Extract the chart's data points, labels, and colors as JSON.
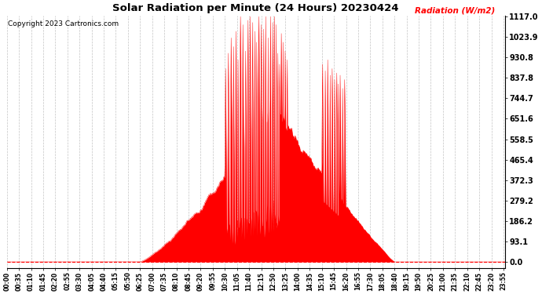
{
  "title": "Solar Radiation per Minute (24 Hours) 20230424",
  "copyright_text": "Copyright 2023 Cartronics.com",
  "ylabel": "Radiation (W/m2)",
  "ylabel_color": "#ff0000",
  "fill_color": "#ff0000",
  "line_color": "#ff0000",
  "background_color": "#ffffff",
  "grid_color": "#aaaaaa",
  "ymax": 1117.0,
  "yticks": [
    0.0,
    93.1,
    186.2,
    279.2,
    372.3,
    465.4,
    558.5,
    651.6,
    744.7,
    837.8,
    930.8,
    1023.9,
    1117.0
  ],
  "hline_color": "#ff0000",
  "num_minutes": 1440,
  "xtick_interval": 35,
  "xtick_labels": [
    "00:00",
    "00:35",
    "01:10",
    "01:45",
    "02:20",
    "02:55",
    "03:30",
    "04:05",
    "04:40",
    "05:15",
    "05:50",
    "06:25",
    "07:00",
    "07:35",
    "08:10",
    "08:45",
    "09:20",
    "09:55",
    "10:30",
    "11:05",
    "11:40",
    "12:15",
    "12:50",
    "13:25",
    "14:00",
    "14:35",
    "15:10",
    "15:45",
    "16:20",
    "16:55",
    "17:30",
    "18:05",
    "18:40",
    "19:15",
    "19:50",
    "20:25",
    "21:00",
    "21:35",
    "22:10",
    "22:45",
    "23:20",
    "23:55"
  ],
  "figwidth": 6.9,
  "figheight": 3.75,
  "dpi": 100
}
